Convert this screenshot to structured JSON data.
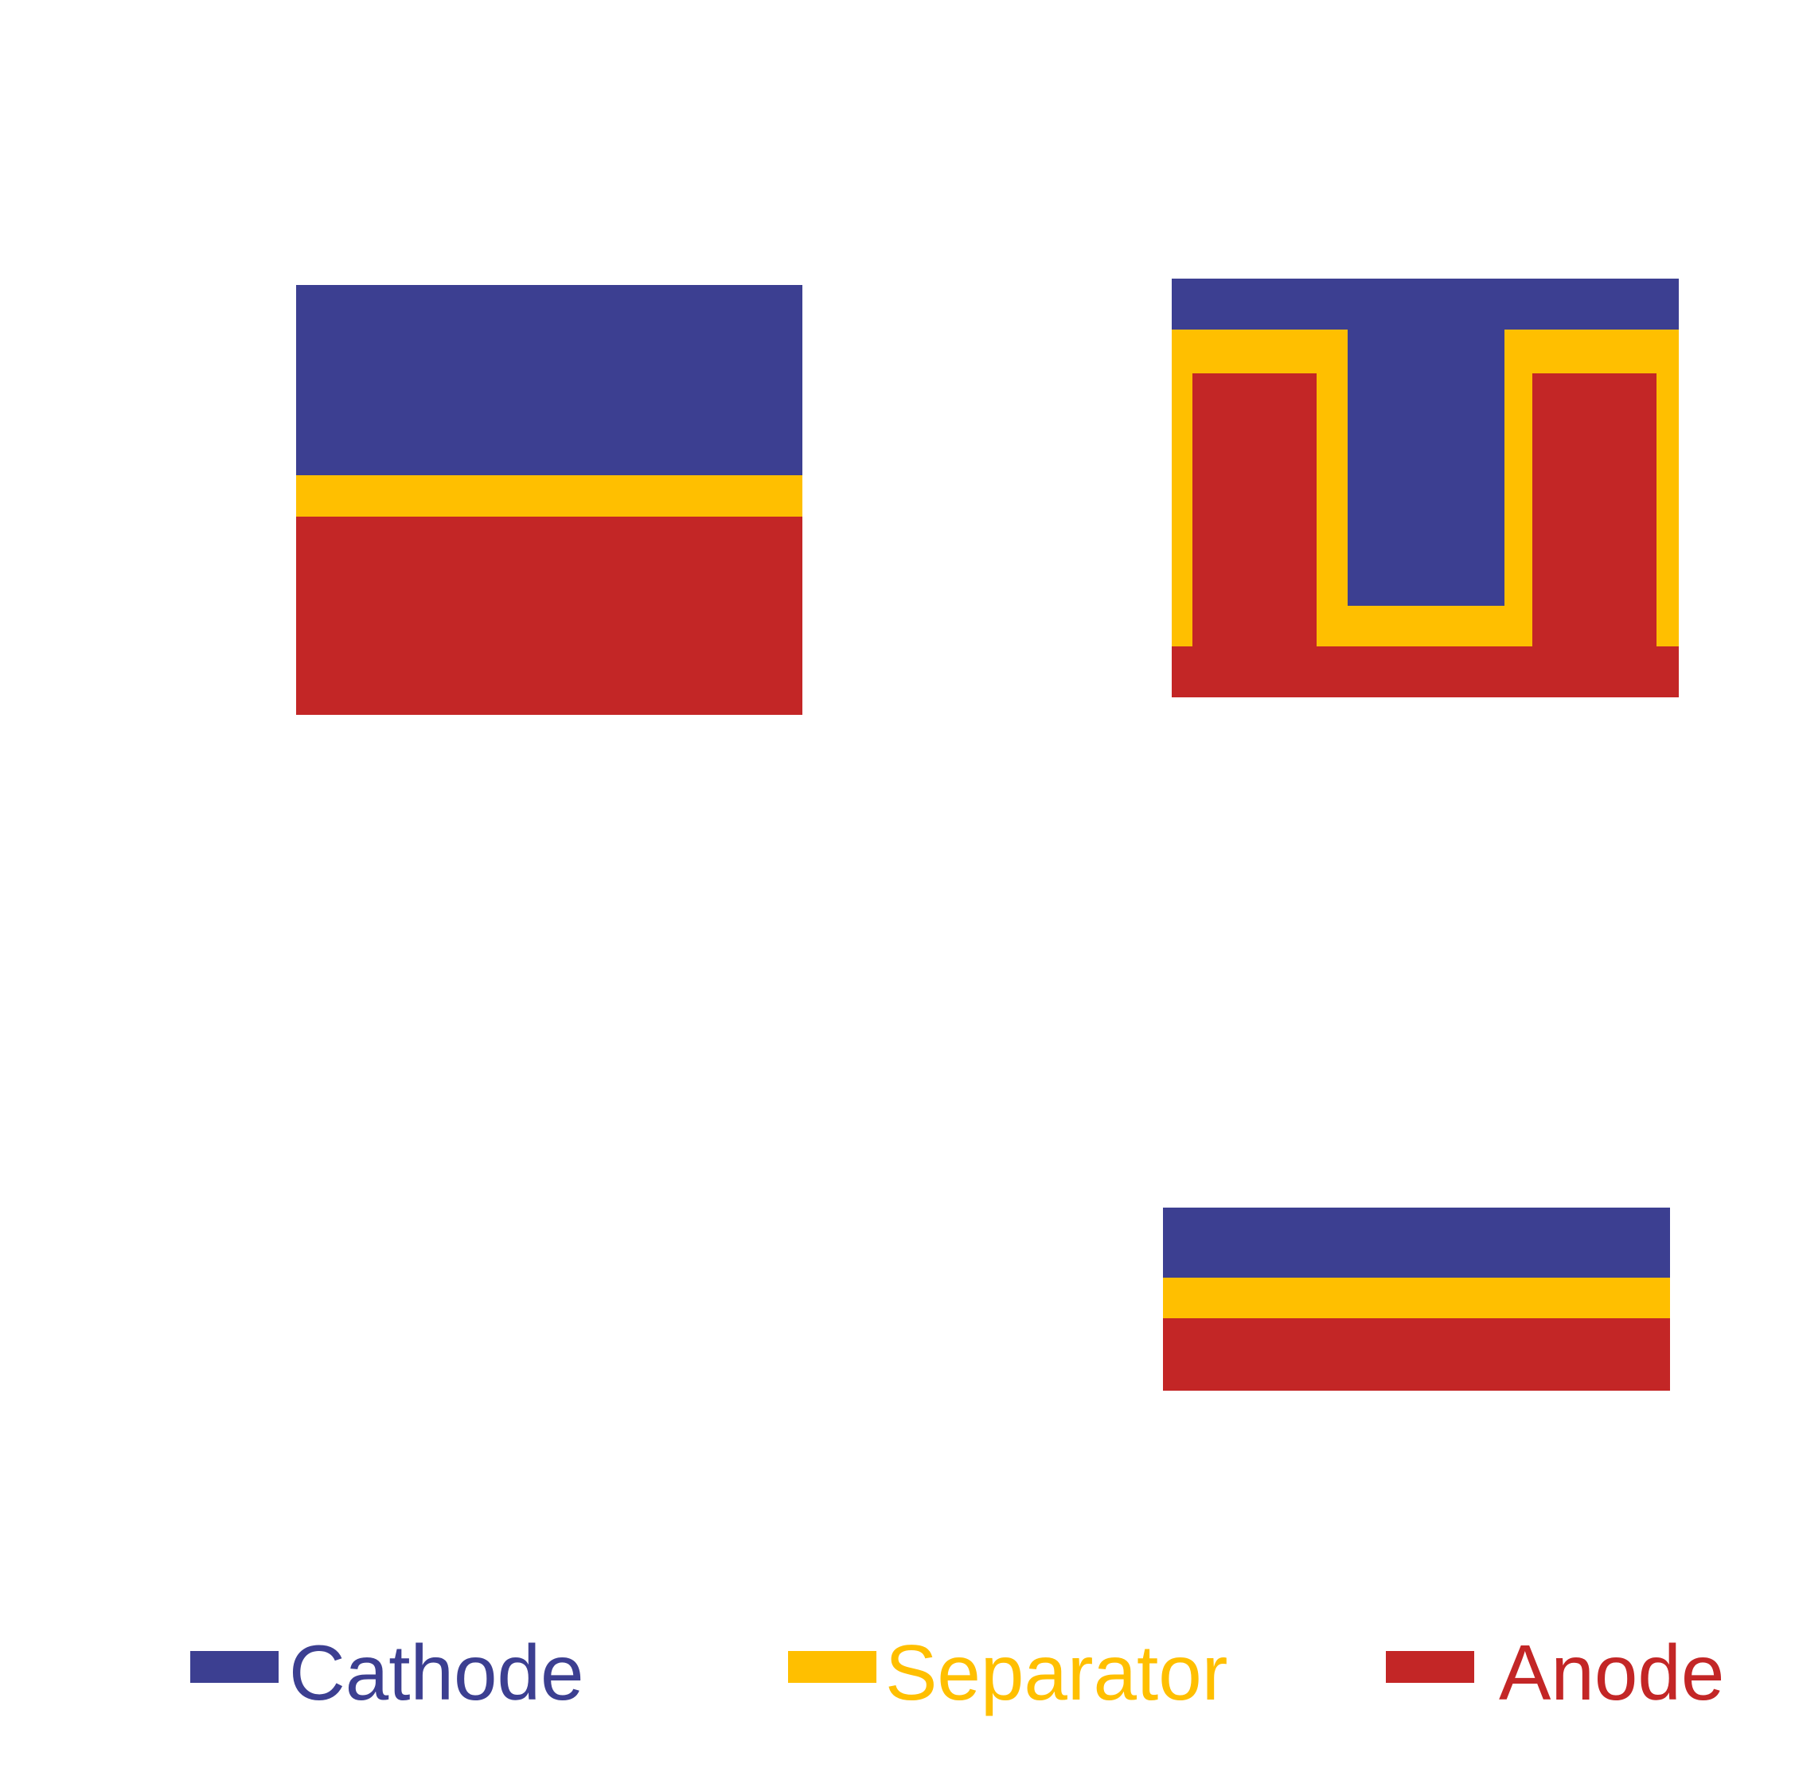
{
  "colors": {
    "cathode": "#3c3f91",
    "separator": "#ffbf00",
    "anode": "#c32626"
  },
  "legend": {
    "items": [
      {
        "key": "cathode",
        "label": "Cathode"
      },
      {
        "key": "separator",
        "label": "Separator"
      },
      {
        "key": "anode",
        "label": "Anode"
      }
    ]
  },
  "figures": [
    {
      "id": "planar-thick",
      "layers": [
        "cathode",
        "separator",
        "anode"
      ]
    },
    {
      "id": "interdigitated",
      "layers": [
        "cathode",
        "separator",
        "anode"
      ]
    },
    {
      "id": "planar-thin",
      "layers": [
        "cathode",
        "separator",
        "anode"
      ]
    }
  ]
}
